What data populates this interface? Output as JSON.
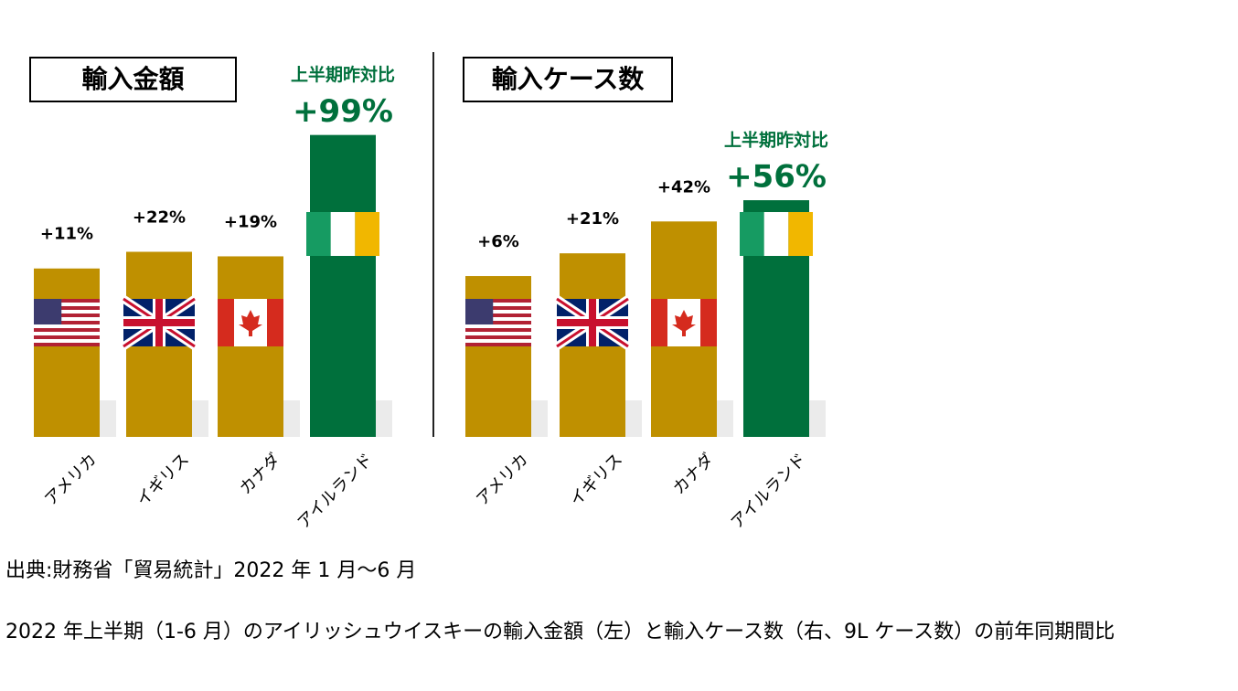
{
  "chart_data": [
    {
      "type": "bar",
      "title": "輸入金額",
      "annotation": "上半期昨対比",
      "categories": [
        "アメリカ",
        "イギリス",
        "カナダ",
        "アイルランド"
      ],
      "values": [
        11,
        22,
        19,
        99
      ],
      "value_labels": [
        "+11%",
        "+22%",
        "+19%",
        "+99%"
      ],
      "colors": [
        "#bf9000",
        "#bf9000",
        "#bf9000",
        "#00703c"
      ],
      "label_colors": [
        "#000000",
        "#000000",
        "#000000",
        "#00703c"
      ],
      "ylim": [
        -100,
        100
      ]
    },
    {
      "type": "bar",
      "title": "輸入ケース数",
      "annotation": "上半期昨対比",
      "categories": [
        "アメリカ",
        "イギリス",
        "カナダ",
        "アイルランド"
      ],
      "values": [
        6,
        21,
        42,
        56
      ],
      "value_labels": [
        "+6%",
        "+21%",
        "+42%",
        "+56%"
      ],
      "colors": [
        "#bf9000",
        "#bf9000",
        "#bf9000",
        "#00703c"
      ],
      "label_colors": [
        "#000000",
        "#000000",
        "#000000",
        "#00703c"
      ],
      "ylim": [
        -100,
        100
      ]
    }
  ],
  "source": "出典:財務省「貿易統計」2022 年 1 月～6 月",
  "caption": "2022 年上半期（1-6 月）のアイリッシュウイスキーの輸入金額（左）と輸入ケース数（右、9L ケース数）の前年同期間比"
}
